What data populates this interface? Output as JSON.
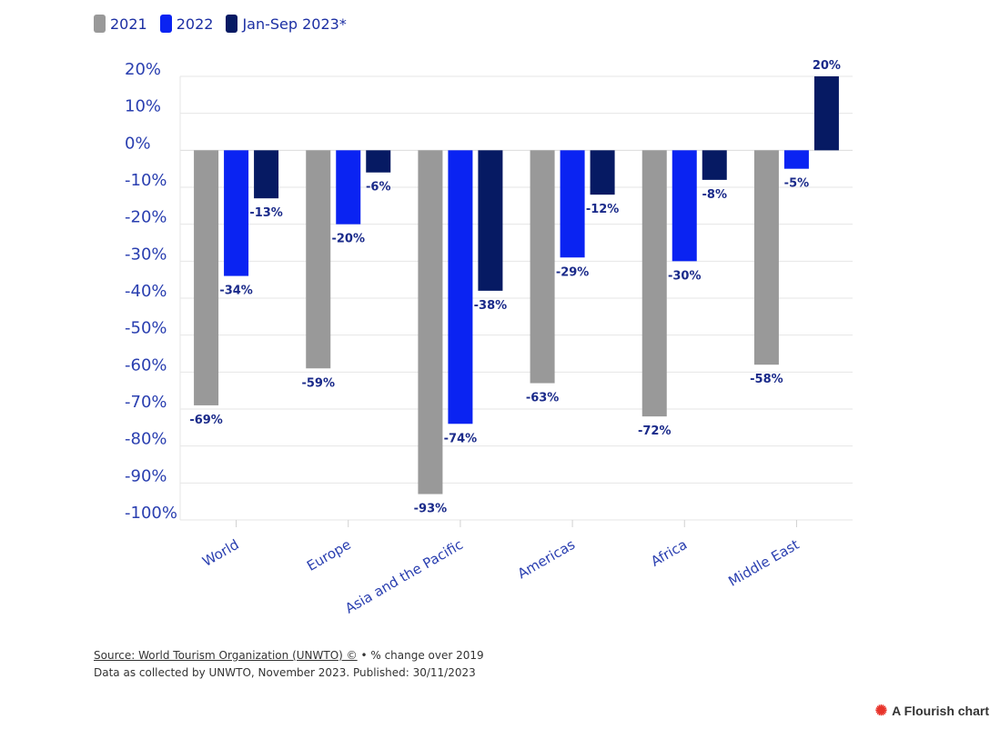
{
  "legend": [
    {
      "label": "2021",
      "color": "#999999"
    },
    {
      "label": "2022",
      "color": "#0a23f2"
    },
    {
      "label": "Jan-Sep 2023*",
      "color": "#061a63"
    }
  ],
  "chart_data": {
    "type": "bar",
    "title": "",
    "xlabel": "",
    "ylabel": "",
    "categories": [
      "World",
      "Europe",
      "Asia and the Pacific",
      "Americas",
      "Africa",
      "Middle East"
    ],
    "series": [
      {
        "name": "2021",
        "color": "#999999",
        "values": [
          -69,
          -59,
          -93,
          -63,
          -72,
          -58
        ]
      },
      {
        "name": "2022",
        "color": "#0a23f2",
        "values": [
          -34,
          -20,
          -74,
          -29,
          -30,
          -5
        ]
      },
      {
        "name": "Jan-Sep 2023*",
        "color": "#061a63",
        "values": [
          -13,
          -6,
          -38,
          -12,
          -8,
          20
        ]
      }
    ],
    "ylim": [
      -100,
      20
    ],
    "yticks": [
      20,
      10,
      0,
      -10,
      -20,
      -30,
      -40,
      -50,
      -60,
      -70,
      -80,
      -90,
      -100
    ],
    "ytick_suffix": "%",
    "data_label_suffix": "%",
    "grid": true,
    "legend_position": "top-left"
  },
  "footer": {
    "source_link": "Source: World Tourism Organization (UNWTO) ©",
    "note": " • % change over 2019",
    "line2": "Data as collected by UNWTO, November 2023. Published: 30/11/2023"
  },
  "brand": {
    "icon": "flourish-logo-icon",
    "label": "A Flourish chart"
  }
}
